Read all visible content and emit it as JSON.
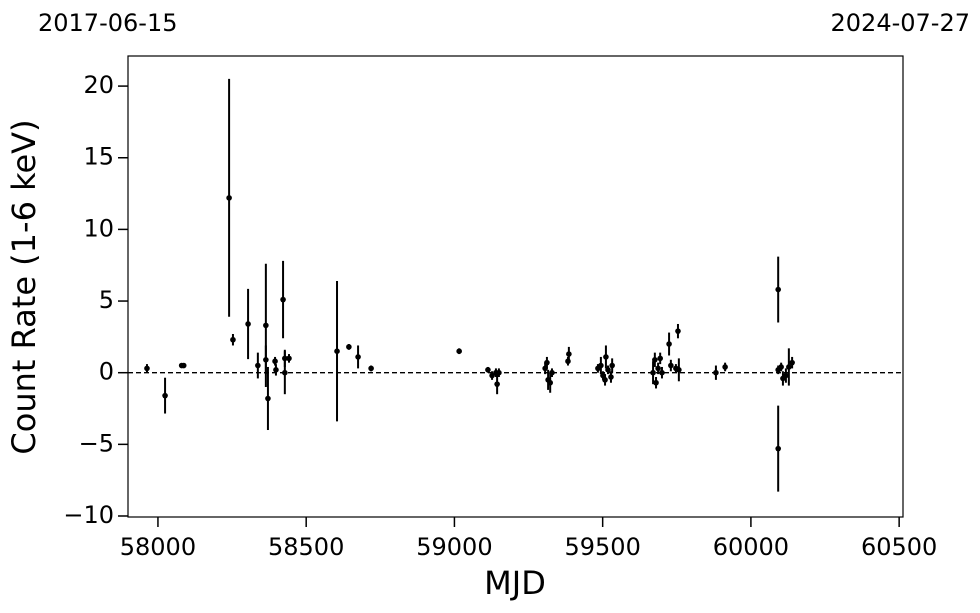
{
  "chart_data": {
    "type": "scatter",
    "xlabel": "MJD",
    "ylabel": "Count Rate (1-6 keV)",
    "annotations": [
      "2017-06-15",
      "2024-07-27"
    ],
    "color": "#000000",
    "hline": 0,
    "x": [
      57963,
      58024,
      58080,
      58087,
      58240,
      58253,
      58304,
      58337,
      58364,
      58371,
      58364,
      58395,
      58398,
      58422,
      58428,
      58428,
      58442,
      58604,
      58644,
      58675,
      58719,
      59016,
      59113,
      59127,
      59140,
      59144,
      59150,
      59306,
      59312,
      59316,
      59323,
      59329,
      59383,
      59386,
      59484,
      59494,
      59501,
      59508,
      59511,
      59518,
      59528,
      59532,
      59670,
      59676,
      59680,
      59687,
      59694,
      59700,
      59724,
      59730,
      59747,
      59754,
      59757,
      59882,
      59913,
      60092,
      60092,
      60092,
      60102,
      60108,
      60118,
      60128,
      60139
    ],
    "values": [
      0.3,
      -1.6,
      0.5,
      0.5,
      12.2,
      2.3,
      3.4,
      0.5,
      3.3,
      -1.8,
      0.9,
      0.8,
      0.2,
      5.1,
      1.0,
      0.0,
      1.0,
      1.5,
      1.8,
      1.1,
      0.3,
      1.5,
      0.2,
      -0.2,
      0.0,
      -0.8,
      0.0,
      0.3,
      0.7,
      -0.5,
      -0.7,
      0.0,
      0.8,
      1.3,
      0.3,
      0.5,
      -0.2,
      -0.5,
      1.1,
      0.2,
      -0.3,
      0.5,
      0.0,
      0.9,
      -0.7,
      0.3,
      1.0,
      0.0,
      2.0,
      0.5,
      0.3,
      2.9,
      0.2,
      0.0,
      0.4,
      5.8,
      -5.3,
      0.2,
      0.4,
      -0.4,
      -0.2,
      0.4,
      0.7
    ],
    "errors": [
      0.3,
      1.25,
      0.1,
      0.1,
      8.3,
      0.4,
      2.45,
      0.9,
      4.3,
      2.2,
      1.0,
      0.3,
      0.4,
      2.7,
      0.6,
      1.5,
      0.3,
      4.9,
      0.2,
      0.8,
      0.2,
      0.2,
      0.2,
      0.3,
      0.3,
      0.7,
      0.3,
      0.4,
      0.4,
      0.7,
      0.7,
      0.3,
      0.3,
      0.5,
      0.3,
      0.6,
      0.3,
      0.4,
      0.8,
      0.3,
      0.4,
      0.5,
      0.8,
      0.5,
      0.4,
      0.4,
      0.4,
      0.4,
      0.8,
      0.4,
      0.3,
      0.5,
      0.8,
      0.5,
      0.3,
      2.3,
      3.0,
      0.3,
      0.3,
      0.5,
      0.5,
      1.3,
      0.4
    ],
    "xlim": [
      57899,
      60513
    ],
    "ylim": [
      -10.07,
      22.1
    ],
    "xticks": [
      58000,
      58500,
      59000,
      59500,
      60000,
      60500
    ],
    "yticks": [
      {
        "value": -10,
        "label": "−10"
      },
      {
        "value": -5,
        "label": "−5"
      },
      0,
      5,
      10,
      15,
      20
    ]
  }
}
